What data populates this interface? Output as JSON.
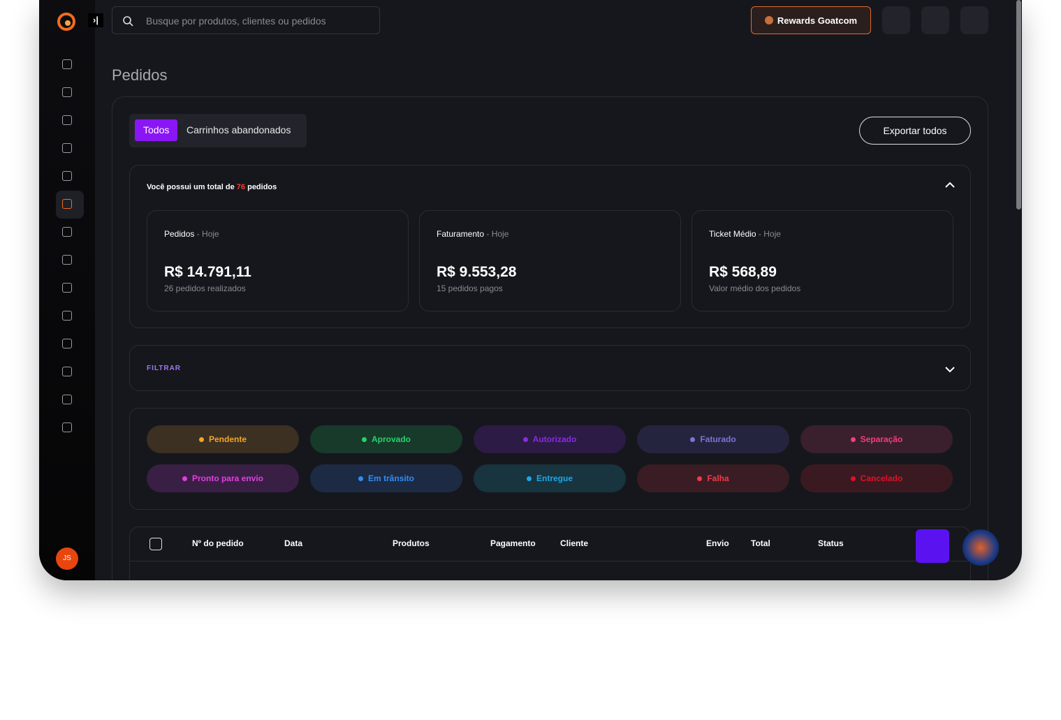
{
  "header": {
    "search_placeholder": "Busque por produtos, clientes ou pedidos",
    "rewards": "Rewards Goatcom"
  },
  "page_title": "Pedidos",
  "tabs": [
    "Todos",
    "Carrinhos abandonados"
  ],
  "export_button": "Exportar todos",
  "summary": {
    "prefix": "Você possui um total de",
    "count": 76,
    "suffix": "pedidos"
  },
  "cards": [
    {
      "title": "Pedidos",
      "period": "- Hoje",
      "value": "R$ 14.791,11",
      "note": "26 pedidos realizados"
    },
    {
      "title": "Faturamento",
      "period": "- Hoje",
      "value": "R$ 9.553,28",
      "note": "15 pedidos pagos"
    },
    {
      "title": "Ticket Médio",
      "period": "- Hoje",
      "value": "R$ 568,89",
      "note": "Valor médio dos pedidos"
    }
  ],
  "filter_label": "FILTRAR",
  "statuses": [
    {
      "label": "Pendente",
      "color": "#f5a524",
      "bg": "#3b3021"
    },
    {
      "label": "Aprovado",
      "color": "#22d36b",
      "bg": "#173a2a"
    },
    {
      "label": "Autorizado",
      "color": "#8b2be2",
      "bg": "#2c1b45"
    },
    {
      "label": "Faturado",
      "color": "#7b74d6",
      "bg": "#25243e"
    },
    {
      "label": "Separação",
      "color": "#f0407a",
      "bg": "#3a1f2d"
    },
    {
      "label": "Pronto para envio",
      "color": "#e040e0",
      "bg": "#3a1f45"
    },
    {
      "label": "Em trânsito",
      "color": "#2f8ef5",
      "bg": "#1d2a44"
    },
    {
      "label": "Entregue",
      "color": "#1ea7e8",
      "bg": "#17343f"
    },
    {
      "label": "Falha",
      "color": "#f03a4a",
      "bg": "#3a1c24"
    },
    {
      "label": "Cancelado",
      "color": "#e0102a",
      "bg": "#3a1a20"
    }
  ],
  "table_headers": [
    "Nº do pedido",
    "Data",
    "Produtos",
    "Pagamento",
    "Cliente",
    "Envio",
    "Total",
    "Status"
  ],
  "user_initials": "JS"
}
